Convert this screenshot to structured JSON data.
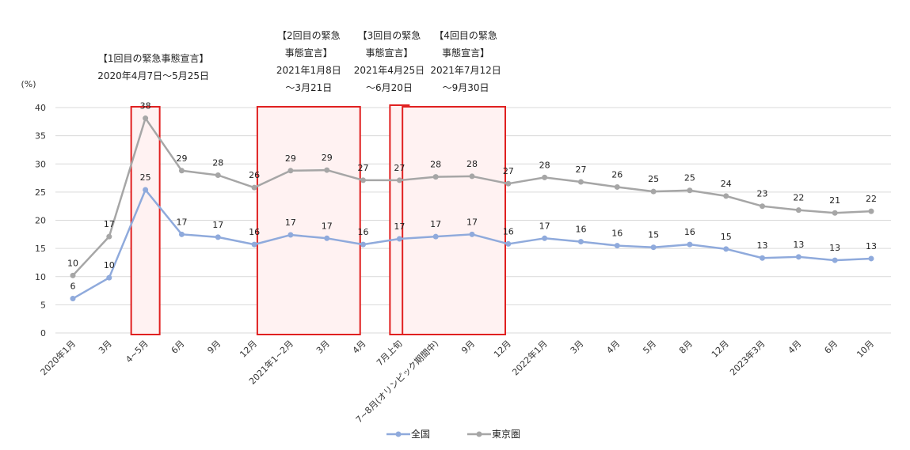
{
  "chart_data": {
    "type": "line",
    "y_unit": "(%)",
    "ylim": [
      0,
      40
    ],
    "yticks": [
      0,
      5,
      10,
      15,
      20,
      25,
      30,
      35,
      40
    ],
    "grid": true,
    "legend_position": "bottom",
    "categories": [
      "2020年1月",
      "3月",
      "4~5月",
      "6月",
      "9月",
      "12月",
      "2021年1~2月",
      "3月",
      "4月",
      "7月上旬",
      "7~8月(オリンピック期間中)",
      "9月",
      "12月",
      "2022年1月",
      "3月",
      "4月",
      "5月",
      "8月",
      "12月",
      "2023年3月",
      "4月",
      "6月",
      "10月"
    ],
    "series": [
      {
        "name": "全国",
        "color": "#8faadc",
        "values": [
          6,
          10,
          25,
          17,
          17,
          16,
          17,
          17,
          16,
          17,
          17,
          17,
          16,
          17,
          16,
          16,
          15,
          16,
          15,
          13,
          13,
          13,
          13
        ],
        "plot": [
          6.1,
          9.8,
          25.4,
          17.5,
          17.0,
          15.7,
          17.4,
          16.8,
          15.7,
          16.7,
          17.1,
          17.5,
          15.8,
          16.8,
          16.2,
          15.5,
          15.2,
          15.7,
          14.9,
          13.3,
          13.5,
          12.9,
          13.2
        ]
      },
      {
        "name": "東京圏",
        "color": "#a6a6a6",
        "values": [
          10,
          17,
          38,
          29,
          28,
          26,
          29,
          29,
          27,
          27,
          28,
          28,
          27,
          28,
          27,
          26,
          25,
          25,
          24,
          23,
          22,
          21,
          22
        ],
        "plot": [
          10.2,
          17.1,
          38.1,
          28.8,
          28.0,
          25.8,
          28.8,
          28.9,
          27.1,
          27.1,
          27.7,
          27.8,
          26.5,
          27.6,
          26.8,
          25.9,
          25.1,
          25.3,
          24.3,
          22.5,
          21.8,
          21.3,
          21.6
        ]
      }
    ],
    "annotations": [
      {
        "lines": [
          "【1回目の緊急事態宣言】",
          "2020年4月7日～5月25日"
        ]
      },
      {
        "lines": [
          "【2回目の緊急",
          "事態宣言】",
          "2021年1月8日",
          "～3月21日"
        ]
      },
      {
        "lines": [
          "【3回目の緊急",
          "事態宣言】",
          "2021年4月25日",
          "～6月20日"
        ]
      },
      {
        "lines": [
          "【4回目の緊急",
          "事態宣言】",
          "2021年7月12日",
          "～9月30日"
        ]
      }
    ],
    "highlights": [
      {
        "from": "4~5月",
        "to": "4~5月"
      },
      {
        "from": "2021年1~2月",
        "to": "3月"
      },
      {
        "from": "7月上旬",
        "to": "7月上旬"
      },
      {
        "from": "7~8月(オリンピック期間中)",
        "to": "9月"
      }
    ]
  },
  "colors": {
    "highlight_border": "#e02020",
    "highlight_fill": "#fff2f2",
    "grid": "#d9d9d9"
  }
}
